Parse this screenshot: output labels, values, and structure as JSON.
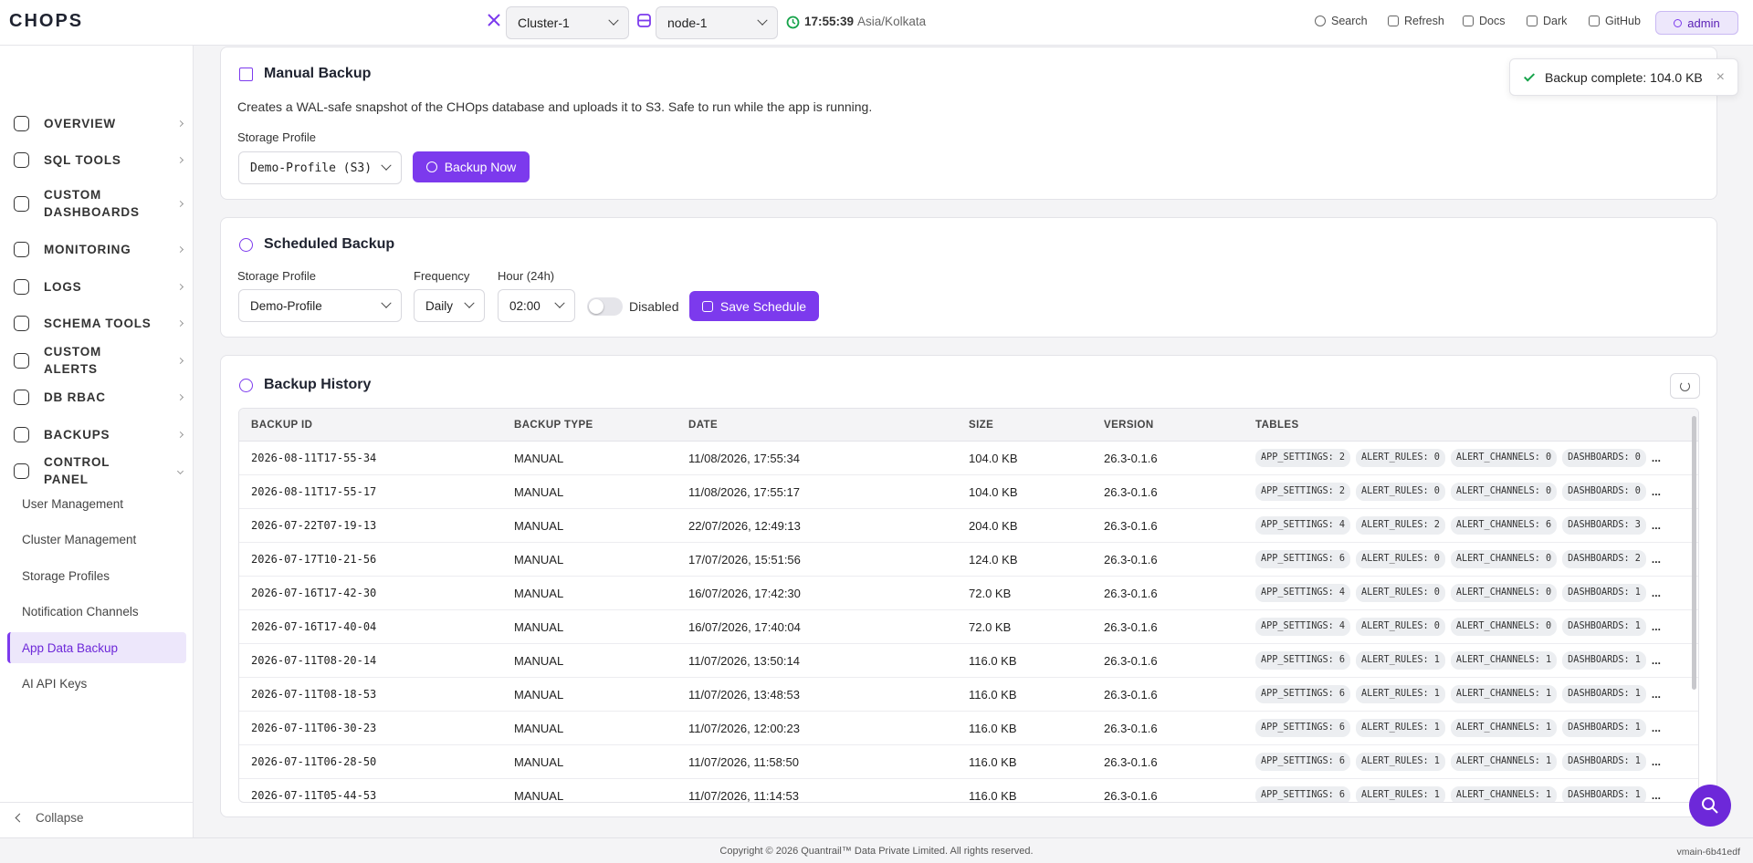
{
  "header": {
    "logo": "CHOPS",
    "cluster": "Cluster-1",
    "node": "node-1",
    "time": "17:55:39",
    "timezone": "Asia/Kolkata",
    "actions": [
      "Search",
      "Refresh",
      "Docs",
      "Dark",
      "GitHub"
    ],
    "user": "admin"
  },
  "sidebar": {
    "items": [
      "OVERVIEW",
      "SQL TOOLS",
      "CUSTOM DASHBOARDS",
      "MONITORING",
      "LOGS",
      "SCHEMA TOOLS",
      "CUSTOM ALERTS",
      "DB RBAC",
      "BACKUPS",
      "CONTROL PANEL"
    ],
    "sub_items": [
      "User Management",
      "Cluster Management",
      "Storage Profiles",
      "Notification Channels",
      "App Data Backup",
      "AI API Keys"
    ],
    "active": "App Data Backup",
    "collapse": "Collapse"
  },
  "manual_backup": {
    "title": "Manual Backup",
    "description": "Creates a WAL-safe snapshot of the CHOps database and uploads it to S3. Safe to run while the app is running.",
    "profile_label": "Storage Profile",
    "profile": "Demo-Profile (S3)",
    "button": "Backup Now"
  },
  "scheduled_backup": {
    "title": "Scheduled Backup",
    "profile_label": "Storage Profile",
    "profile": "Demo-Profile",
    "frequency_label": "Frequency",
    "frequency": "Daily",
    "hour_label": "Hour (24h)",
    "hour": "02:00",
    "toggle": "Disabled",
    "button": "Save Schedule"
  },
  "history": {
    "title": "Backup History",
    "columns": [
      "BACKUP ID",
      "BACKUP TYPE",
      "DATE",
      "SIZE",
      "VERSION",
      "TABLES"
    ],
    "more": "...",
    "rows": [
      [
        "2026-08-11T17-55-34",
        "MANUAL",
        "11/08/2026, 17:55:34",
        "104.0 KB",
        "26.3-0.1.6",
        [
          "APP_SETTINGS: 2",
          "ALERT_RULES: 0",
          "ALERT_CHANNELS: 0",
          "DASHBOARDS: 0"
        ]
      ],
      [
        "2026-08-11T17-55-17",
        "MANUAL",
        "11/08/2026, 17:55:17",
        "104.0 KB",
        "26.3-0.1.6",
        [
          "APP_SETTINGS: 2",
          "ALERT_RULES: 0",
          "ALERT_CHANNELS: 0",
          "DASHBOARDS: 0"
        ]
      ],
      [
        "2026-07-22T07-19-13",
        "MANUAL",
        "22/07/2026, 12:49:13",
        "204.0 KB",
        "26.3-0.1.6",
        [
          "APP_SETTINGS: 4",
          "ALERT_RULES: 2",
          "ALERT_CHANNELS: 6",
          "DASHBOARDS: 3"
        ]
      ],
      [
        "2026-07-17T10-21-56",
        "MANUAL",
        "17/07/2026, 15:51:56",
        "124.0 KB",
        "26.3-0.1.6",
        [
          "APP_SETTINGS: 6",
          "ALERT_RULES: 0",
          "ALERT_CHANNELS: 0",
          "DASHBOARDS: 2"
        ]
      ],
      [
        "2026-07-16T17-42-30",
        "MANUAL",
        "16/07/2026, 17:42:30",
        "72.0 KB",
        "26.3-0.1.6",
        [
          "APP_SETTINGS: 4",
          "ALERT_RULES: 0",
          "ALERT_CHANNELS: 0",
          "DASHBOARDS: 1"
        ]
      ],
      [
        "2026-07-16T17-40-04",
        "MANUAL",
        "16/07/2026, 17:40:04",
        "72.0 KB",
        "26.3-0.1.6",
        [
          "APP_SETTINGS: 4",
          "ALERT_RULES: 0",
          "ALERT_CHANNELS: 0",
          "DASHBOARDS: 1"
        ]
      ],
      [
        "2026-07-11T08-20-14",
        "MANUAL",
        "11/07/2026, 13:50:14",
        "116.0 KB",
        "26.3-0.1.6",
        [
          "APP_SETTINGS: 6",
          "ALERT_RULES: 1",
          "ALERT_CHANNELS: 1",
          "DASHBOARDS: 1"
        ]
      ],
      [
        "2026-07-11T08-18-53",
        "MANUAL",
        "11/07/2026, 13:48:53",
        "116.0 KB",
        "26.3-0.1.6",
        [
          "APP_SETTINGS: 6",
          "ALERT_RULES: 1",
          "ALERT_CHANNELS: 1",
          "DASHBOARDS: 1"
        ]
      ],
      [
        "2026-07-11T06-30-23",
        "MANUAL",
        "11/07/2026, 12:00:23",
        "116.0 KB",
        "26.3-0.1.6",
        [
          "APP_SETTINGS: 6",
          "ALERT_RULES: 1",
          "ALERT_CHANNELS: 1",
          "DASHBOARDS: 1"
        ]
      ],
      [
        "2026-07-11T06-28-50",
        "MANUAL",
        "11/07/2026, 11:58:50",
        "116.0 KB",
        "26.3-0.1.6",
        [
          "APP_SETTINGS: 6",
          "ALERT_RULES: 1",
          "ALERT_CHANNELS: 1",
          "DASHBOARDS: 1"
        ]
      ],
      [
        "2026-07-11T05-44-53",
        "MANUAL",
        "11/07/2026, 11:14:53",
        "116.0 KB",
        "26.3-0.1.6",
        [
          "APP_SETTINGS: 6",
          "ALERT_RULES: 1",
          "ALERT_CHANNELS: 1",
          "DASHBOARDS: 1"
        ]
      ]
    ]
  },
  "toast": "Backup complete: 104.0 KB",
  "footer": {
    "copyright": "Copyright © 2026 Quantrail™ Data Private Limited. All rights reserved.",
    "version": "vmain-6b41edf"
  }
}
